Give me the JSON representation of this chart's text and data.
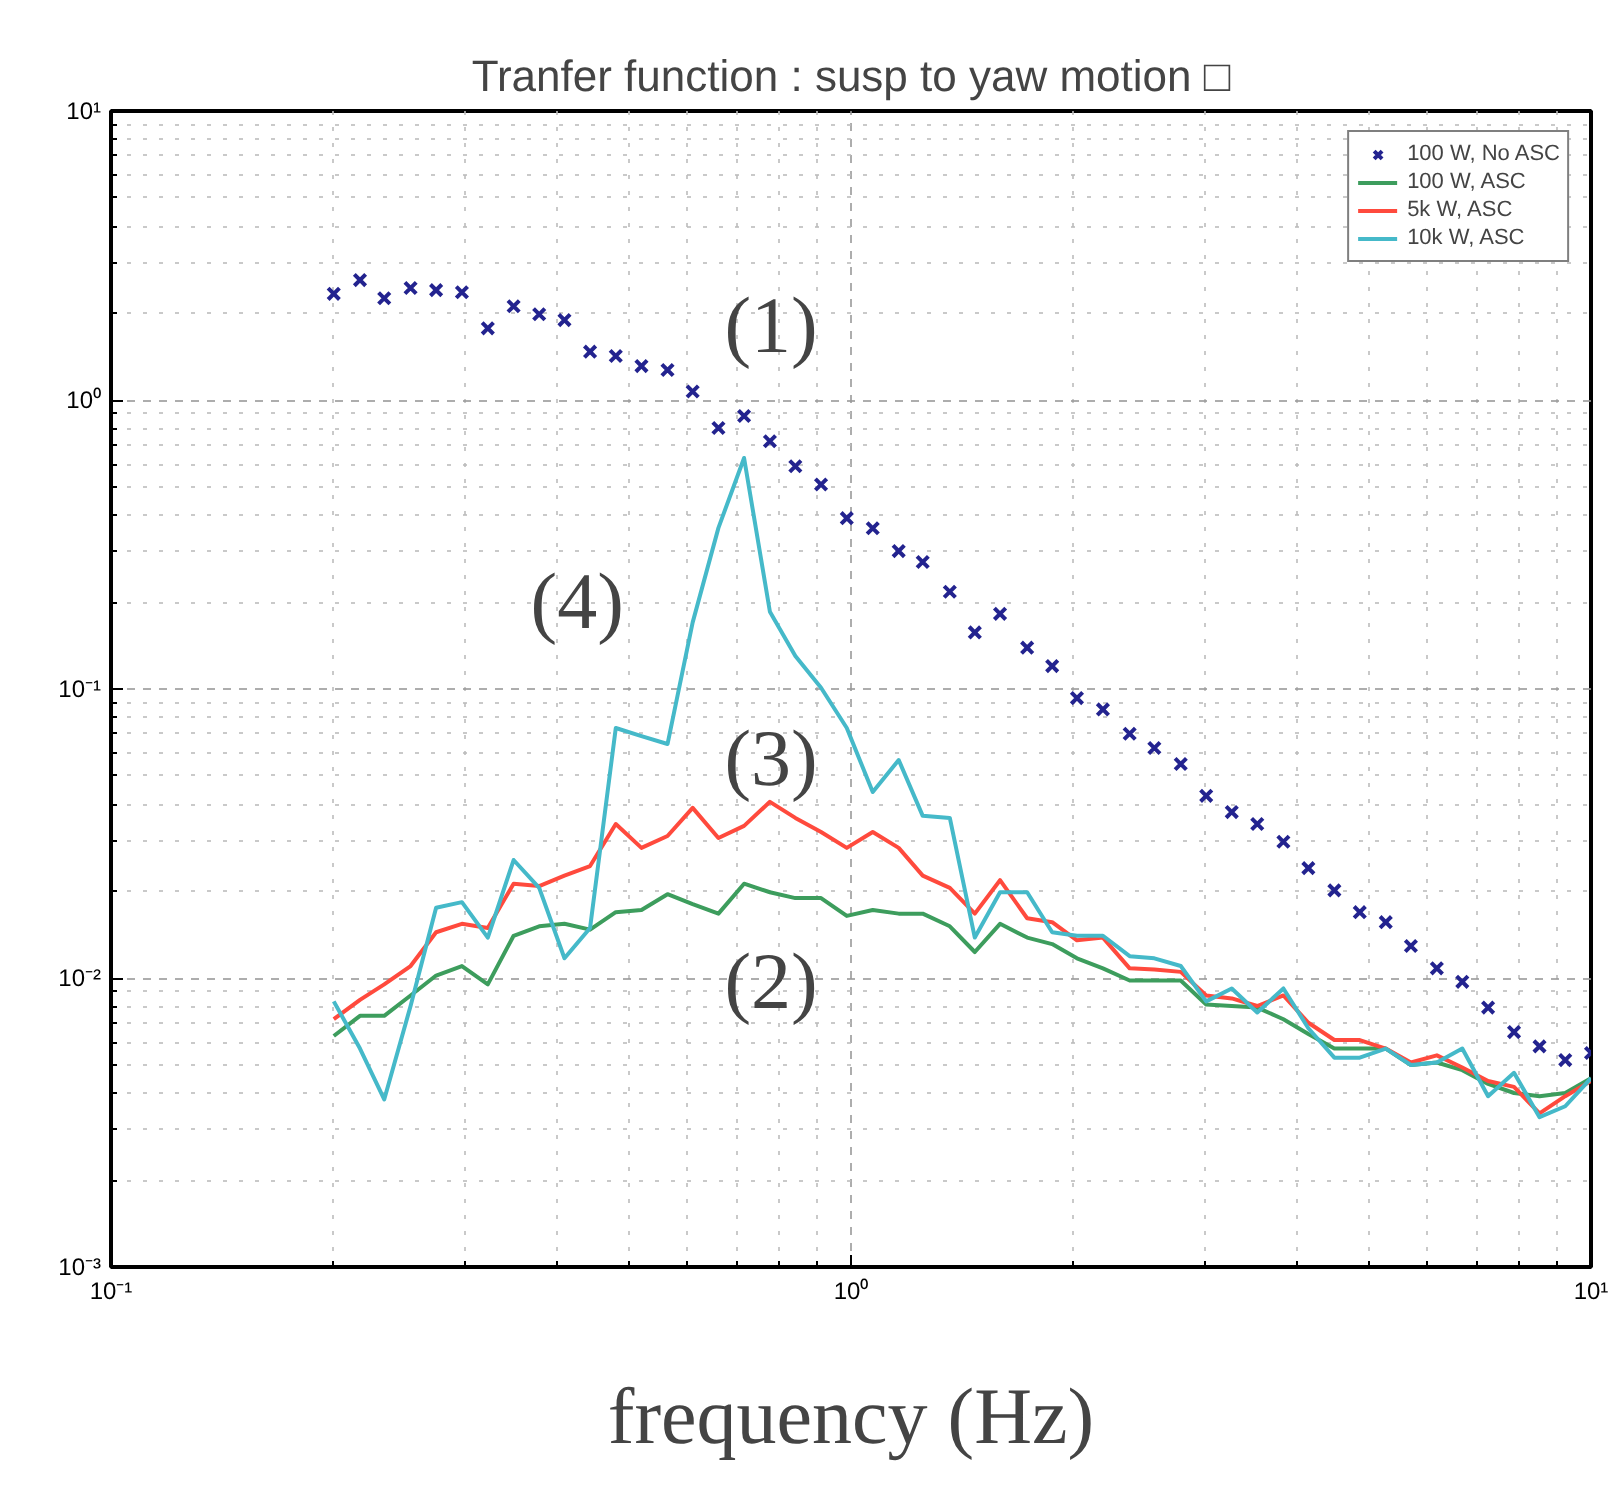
{
  "chart_data": {
    "type": "line",
    "title": "Tranfer function : susp to yaw motion □",
    "xlabel": "frequency (Hz)",
    "log": "xy",
    "grid": true,
    "legend": "top right",
    "line_style": "solid",
    "xlim": [
      0.1,
      10
    ],
    "ylim": [
      0.001,
      10
    ],
    "xticks": [
      {
        "value": 0.1,
        "label": "10⁻¹"
      },
      {
        "value": 1,
        "label": "10⁰"
      },
      {
        "value": 10,
        "label": "10¹"
      }
    ],
    "yticks": [
      {
        "value": 0.001,
        "label": "10⁻³"
      },
      {
        "value": 0.01,
        "label": "10⁻²"
      },
      {
        "value": 0.1,
        "label": "10⁻¹"
      },
      {
        "value": 1,
        "label": "10⁰"
      },
      {
        "value": 10,
        "label": "10¹"
      }
    ],
    "x": [
      0.2,
      0.217,
      0.234,
      0.254,
      0.275,
      0.298,
      0.323,
      0.35,
      0.379,
      0.41,
      0.444,
      0.481,
      0.521,
      0.565,
      0.611,
      0.662,
      0.717,
      0.777,
      0.841,
      0.911,
      0.987,
      1.07,
      1.16,
      1.25,
      1.36,
      1.47,
      1.59,
      1.73,
      1.87,
      2.02,
      2.19,
      2.38,
      2.57,
      2.79,
      3.02,
      3.27,
      3.54,
      3.84,
      4.15,
      4.5,
      4.87,
      5.28,
      5.71,
      6.19,
      6.7,
      7.26,
      7.87,
      8.52,
      9.23,
      10.0
    ],
    "series": [
      {
        "name": "100 W, No ASC",
        "type": "scatter",
        "marker": "cross",
        "color": "#23238f",
        "values": [
          2.33,
          2.6,
          2.25,
          2.44,
          2.4,
          2.36,
          1.77,
          2.11,
          1.98,
          1.89,
          1.47,
          1.42,
          1.31,
          1.27,
          1.07,
          0.8,
          0.88,
          0.72,
          0.59,
          0.51,
          0.39,
          0.36,
          0.3,
          0.275,
          0.217,
          0.157,
          0.182,
          0.139,
          0.12,
          0.093,
          0.085,
          0.07,
          0.0625,
          0.055,
          0.0427,
          0.0375,
          0.0341,
          0.0296,
          0.024,
          0.0201,
          0.0169,
          0.0156,
          0.0129,
          0.0108,
          0.0097,
          0.0079,
          0.0065,
          0.0058,
          0.0052,
          0.0055
        ]
      },
      {
        "name": "100 W, ASC",
        "color": "#3d9d5d",
        "values": [
          0.0063,
          0.0074,
          0.0074,
          0.0087,
          0.0102,
          0.011,
          0.0095,
          0.014,
          0.0151,
          0.0154,
          0.0147,
          0.0169,
          0.0172,
          0.0195,
          0.018,
          0.0167,
          0.0212,
          0.0198,
          0.0189,
          0.0189,
          0.0164,
          0.0172,
          0.0167,
          0.0167,
          0.0151,
          0.0123,
          0.0154,
          0.0138,
          0.0131,
          0.0117,
          0.0108,
          0.0098,
          0.0098,
          0.0098,
          0.0081,
          0.008,
          0.0079,
          0.0072,
          0.0064,
          0.0057,
          0.0057,
          0.0057,
          0.005,
          0.0051,
          0.0048,
          0.0043,
          0.004,
          0.0039,
          0.004,
          0.0045
        ]
      },
      {
        "name": "5k W, ASC",
        "color": "#ff4a3d",
        "values": [
          0.0072,
          0.0084,
          0.0095,
          0.011,
          0.0144,
          0.0154,
          0.0149,
          0.0212,
          0.0208,
          0.0226,
          0.0244,
          0.0341,
          0.0282,
          0.031,
          0.0388,
          0.0305,
          0.0336,
          0.0407,
          0.0358,
          0.032,
          0.0282,
          0.032,
          0.0282,
          0.0226,
          0.0205,
          0.0167,
          0.0218,
          0.0161,
          0.0156,
          0.0135,
          0.0138,
          0.0108,
          0.0107,
          0.0105,
          0.0087,
          0.0085,
          0.008,
          0.0087,
          0.007,
          0.0061,
          0.0061,
          0.0057,
          0.0051,
          0.0054,
          0.0049,
          0.0044,
          0.0042,
          0.0034,
          0.0039,
          0.0044
        ]
      },
      {
        "name": "10k W, ASC",
        "color": "#45b9c9",
        "values": [
          0.0083,
          0.0057,
          0.0038,
          0.008,
          0.0175,
          0.0183,
          0.0138,
          0.0256,
          0.0205,
          0.0117,
          0.0149,
          0.0733,
          0.0687,
          0.0645,
          0.17,
          0.361,
          0.63,
          0.185,
          0.13,
          0.101,
          0.0733,
          0.044,
          0.0568,
          0.0364,
          0.0358,
          0.0138,
          0.0198,
          0.0198,
          0.0144,
          0.014,
          0.014,
          0.0119,
          0.0117,
          0.011,
          0.0083,
          0.0092,
          0.0076,
          0.0092,
          0.0067,
          0.0053,
          0.0053,
          0.0057,
          0.005,
          0.0051,
          0.0057,
          0.0039,
          0.0047,
          0.0033,
          0.0036,
          0.0045
        ]
      }
    ],
    "annotations": [
      "(1)",
      "(4)",
      "(3)",
      "(2)"
    ]
  }
}
